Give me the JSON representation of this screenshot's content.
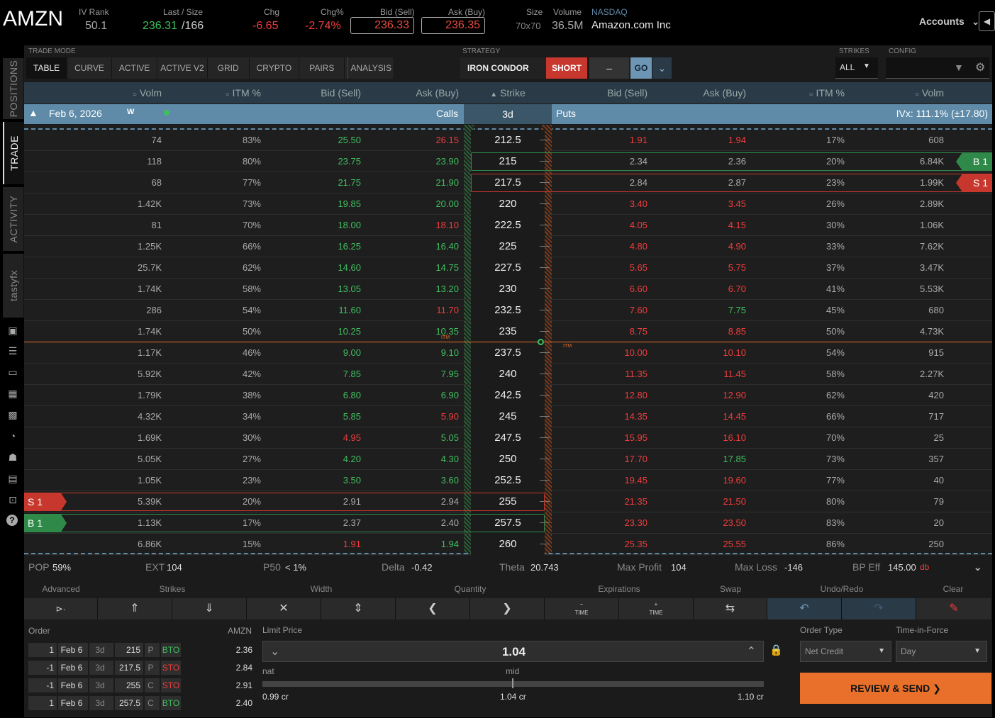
{
  "header": {
    "symbol": "AMZN",
    "iv_rank_label": "IV Rank",
    "iv_rank": "50.1",
    "last_size_label": "Last / Size",
    "last": "236.31",
    "size": "/166",
    "chg_label": "Chg",
    "chg": "-6.65",
    "chg_pct_label": "Chg%",
    "chg_pct": "-2.74%",
    "bid_label": "Bid (Sell)",
    "bid": "236.33",
    "ask_label": "Ask (Buy)",
    "ask": "236.35",
    "size_label": "Size",
    "bid_ask_size": "70x70",
    "volume_label": "Volume",
    "volume": "36.5M",
    "exchange": "NASDAQ",
    "company": "Amazon.com Inc",
    "accounts": "Accounts"
  },
  "sidebar": {
    "tabs": [
      "POSITIONS",
      "TRADE",
      "ACTIVITY",
      "tastyfx"
    ]
  },
  "trade_mode": {
    "label": "TRADE MODE",
    "tabs": [
      "TABLE",
      "CURVE",
      "ACTIVE",
      "ACTIVE V2",
      "GRID",
      "CRYPTO",
      "PAIRS",
      "ANALYSIS"
    ]
  },
  "strategy": {
    "label": "STRATEGY",
    "name": "IRON CONDOR",
    "side": "SHORT",
    "dash": "–",
    "go": "GO"
  },
  "strikes": {
    "label": "STRIKES",
    "value": "ALL"
  },
  "config": {
    "label": "CONFIG"
  },
  "columns": {
    "volm": "Volm",
    "itm": "ITM %",
    "bid": "Bid (Sell)",
    "ask": "Ask (Buy)",
    "strike": "Strike"
  },
  "expiration": {
    "date": "Feb 6, 2026",
    "type": "W",
    "calls": "Calls",
    "dte": "3d",
    "puts": "Puts",
    "ivx": "IVx: 111.1% (±17.80)"
  },
  "rows": [
    {
      "cv": "74",
      "citm": "83%",
      "cb": "25.50",
      "cbc": "g",
      "ca": "26.15",
      "cac": "r",
      "k": "212.5",
      "pb": "1.91",
      "pbc": "r",
      "pa": "1.94",
      "pac": "r",
      "pitm": "17%",
      "pv": "608"
    },
    {
      "cv": "118",
      "citm": "80%",
      "cb": "23.75",
      "cbc": "g",
      "ca": "23.90",
      "cac": "g",
      "k": "215",
      "pb": "2.34",
      "pbc": "w",
      "pa": "2.36",
      "pac": "w",
      "pitm": "20%",
      "pv": "6.84K"
    },
    {
      "cv": "68",
      "citm": "77%",
      "cb": "21.75",
      "cbc": "g",
      "ca": "21.90",
      "cac": "g",
      "k": "217.5",
      "pb": "2.84",
      "pbc": "w",
      "pa": "2.87",
      "pac": "w",
      "pitm": "23%",
      "pv": "1.99K"
    },
    {
      "cv": "1.42K",
      "citm": "73%",
      "cb": "19.85",
      "cbc": "g",
      "ca": "20.00",
      "cac": "g",
      "k": "220",
      "pb": "3.40",
      "pbc": "r",
      "pa": "3.45",
      "pac": "r",
      "pitm": "26%",
      "pv": "2.89K"
    },
    {
      "cv": "81",
      "citm": "70%",
      "cb": "18.00",
      "cbc": "g",
      "ca": "18.10",
      "cac": "r",
      "k": "222.5",
      "pb": "4.05",
      "pbc": "r",
      "pa": "4.15",
      "pac": "r",
      "pitm": "30%",
      "pv": "1.06K"
    },
    {
      "cv": "1.25K",
      "citm": "66%",
      "cb": "16.25",
      "cbc": "g",
      "ca": "16.40",
      "cac": "g",
      "k": "225",
      "pb": "4.80",
      "pbc": "r",
      "pa": "4.90",
      "pac": "r",
      "pitm": "33%",
      "pv": "7.62K"
    },
    {
      "cv": "25.7K",
      "citm": "62%",
      "cb": "14.60",
      "cbc": "g",
      "ca": "14.75",
      "cac": "g",
      "k": "227.5",
      "pb": "5.65",
      "pbc": "r",
      "pa": "5.75",
      "pac": "r",
      "pitm": "37%",
      "pv": "3.47K"
    },
    {
      "cv": "1.74K",
      "citm": "58%",
      "cb": "13.05",
      "cbc": "g",
      "ca": "13.20",
      "cac": "g",
      "k": "230",
      "pb": "6.60",
      "pbc": "r",
      "pa": "6.70",
      "pac": "r",
      "pitm": "41%",
      "pv": "5.53K"
    },
    {
      "cv": "286",
      "citm": "54%",
      "cb": "11.60",
      "cbc": "g",
      "ca": "11.70",
      "cac": "r",
      "k": "232.5",
      "pb": "7.60",
      "pbc": "r",
      "pa": "7.75",
      "pac": "g",
      "pitm": "45%",
      "pv": "680"
    },
    {
      "cv": "1.74K",
      "citm": "50%",
      "cb": "10.25",
      "cbc": "g",
      "ca": "10.35",
      "cac": "g",
      "k": "235",
      "pb": "8.75",
      "pbc": "r",
      "pa": "8.85",
      "pac": "r",
      "pitm": "50%",
      "pv": "4.73K"
    },
    {
      "cv": "1.17K",
      "citm": "46%",
      "cb": "9.00",
      "cbc": "g",
      "ca": "9.10",
      "cac": "g",
      "k": "237.5",
      "pb": "10.00",
      "pbc": "r",
      "pa": "10.10",
      "pac": "r",
      "pitm": "54%",
      "pv": "915"
    },
    {
      "cv": "5.92K",
      "citm": "42%",
      "cb": "7.85",
      "cbc": "g",
      "ca": "7.95",
      "cac": "g",
      "k": "240",
      "pb": "11.35",
      "pbc": "r",
      "pa": "11.45",
      "pac": "r",
      "pitm": "58%",
      "pv": "2.27K"
    },
    {
      "cv": "1.79K",
      "citm": "38%",
      "cb": "6.80",
      "cbc": "g",
      "ca": "6.90",
      "cac": "g",
      "k": "242.5",
      "pb": "12.80",
      "pbc": "r",
      "pa": "12.90",
      "pac": "r",
      "pitm": "62%",
      "pv": "420"
    },
    {
      "cv": "4.32K",
      "citm": "34%",
      "cb": "5.85",
      "cbc": "g",
      "ca": "5.90",
      "cac": "r",
      "k": "245",
      "pb": "14.35",
      "pbc": "r",
      "pa": "14.45",
      "pac": "r",
      "pitm": "66%",
      "pv": "717"
    },
    {
      "cv": "1.69K",
      "citm": "30%",
      "cb": "4.95",
      "cbc": "r",
      "ca": "5.05",
      "cac": "g",
      "k": "247.5",
      "pb": "15.95",
      "pbc": "r",
      "pa": "16.10",
      "pac": "r",
      "pitm": "70%",
      "pv": "25"
    },
    {
      "cv": "5.05K",
      "citm": "27%",
      "cb": "4.20",
      "cbc": "g",
      "ca": "4.30",
      "cac": "g",
      "k": "250",
      "pb": "17.70",
      "pbc": "r",
      "pa": "17.85",
      "pac": "g",
      "pitm": "73%",
      "pv": "357"
    },
    {
      "cv": "1.05K",
      "citm": "23%",
      "cb": "3.50",
      "cbc": "g",
      "ca": "3.60",
      "cac": "g",
      "k": "252.5",
      "pb": "19.45",
      "pbc": "r",
      "pa": "19.60",
      "pac": "r",
      "pitm": "77%",
      "pv": "40"
    },
    {
      "cv": "5.39K",
      "citm": "20%",
      "cb": "2.91",
      "cbc": "w",
      "ca": "2.94",
      "cac": "w",
      "k": "255",
      "pb": "21.35",
      "pbc": "r",
      "pa": "21.50",
      "pac": "r",
      "pitm": "80%",
      "pv": "79"
    },
    {
      "cv": "1.13K",
      "citm": "17%",
      "cb": "2.37",
      "cbc": "w",
      "ca": "2.40",
      "cac": "w",
      "k": "257.5",
      "pb": "23.30",
      "pbc": "r",
      "pa": "23.50",
      "pac": "r",
      "pitm": "83%",
      "pv": "20"
    },
    {
      "cv": "6.86K",
      "citm": "15%",
      "cb": "1.91",
      "cbc": "r",
      "ca": "1.94",
      "cac": "g",
      "k": "260",
      "pb": "25.35",
      "pbc": "r",
      "pa": "25.55",
      "pac": "r",
      "pitm": "86%",
      "pv": "250"
    }
  ],
  "leg_tags": {
    "b1": "B 1",
    "s1": "S 1",
    "itm": "ITM"
  },
  "summary": {
    "pop_label": "POP",
    "pop": "59%",
    "ext_label": "EXT",
    "ext": "104",
    "p50_label": "P50",
    "p50": "< 1%",
    "delta_label": "Delta",
    "delta": "-0.42",
    "theta_label": "Theta",
    "theta": "20.743",
    "maxprofit_label": "Max Profit",
    "maxprofit": "104",
    "maxloss_label": "Max Loss",
    "maxloss": "-146",
    "bpeff_label": "BP Eff",
    "bpeff": "145.00",
    "bpeff_suffix": "db"
  },
  "controls": {
    "labels": [
      "Advanced",
      "Strikes",
      "Width",
      "Quantity",
      "Expirations",
      "Swap",
      "Undo/Redo",
      "Clear"
    ],
    "time": "TIME"
  },
  "order": {
    "label": "Order",
    "symbol": "AMZN",
    "legs": [
      {
        "qty": "1",
        "exp": "Feb 6",
        "dte": "3d",
        "strike": "215",
        "type": "P",
        "action": "BTO",
        "price": "2.36"
      },
      {
        "qty": "-1",
        "exp": "Feb 6",
        "dte": "3d",
        "strike": "217.5",
        "type": "P",
        "action": "STO",
        "price": "2.84"
      },
      {
        "qty": "-1",
        "exp": "Feb 6",
        "dte": "3d",
        "strike": "255",
        "type": "C",
        "action": "STO",
        "price": "2.91"
      },
      {
        "qty": "1",
        "exp": "Feb 6",
        "dte": "3d",
        "strike": "257.5",
        "type": "C",
        "action": "BTO",
        "price": "2.40"
      }
    ],
    "limit_label": "Limit Price",
    "limit": "1.04",
    "nat_label": "nat",
    "mid_label": "mid",
    "nat_val": "0.99 cr",
    "mid_val": "1.04 cr",
    "far_val": "1.10 cr",
    "order_type_label": "Order Type",
    "order_type": "Net Credit",
    "tif_label": "Time-in-Force",
    "tif": "Day",
    "submit": "REVIEW & SEND"
  },
  "colors": {
    "green": "#3fbf5f",
    "red": "#ee3d3d",
    "accent": "#e8702a",
    "blue": "#5f8aa8"
  }
}
